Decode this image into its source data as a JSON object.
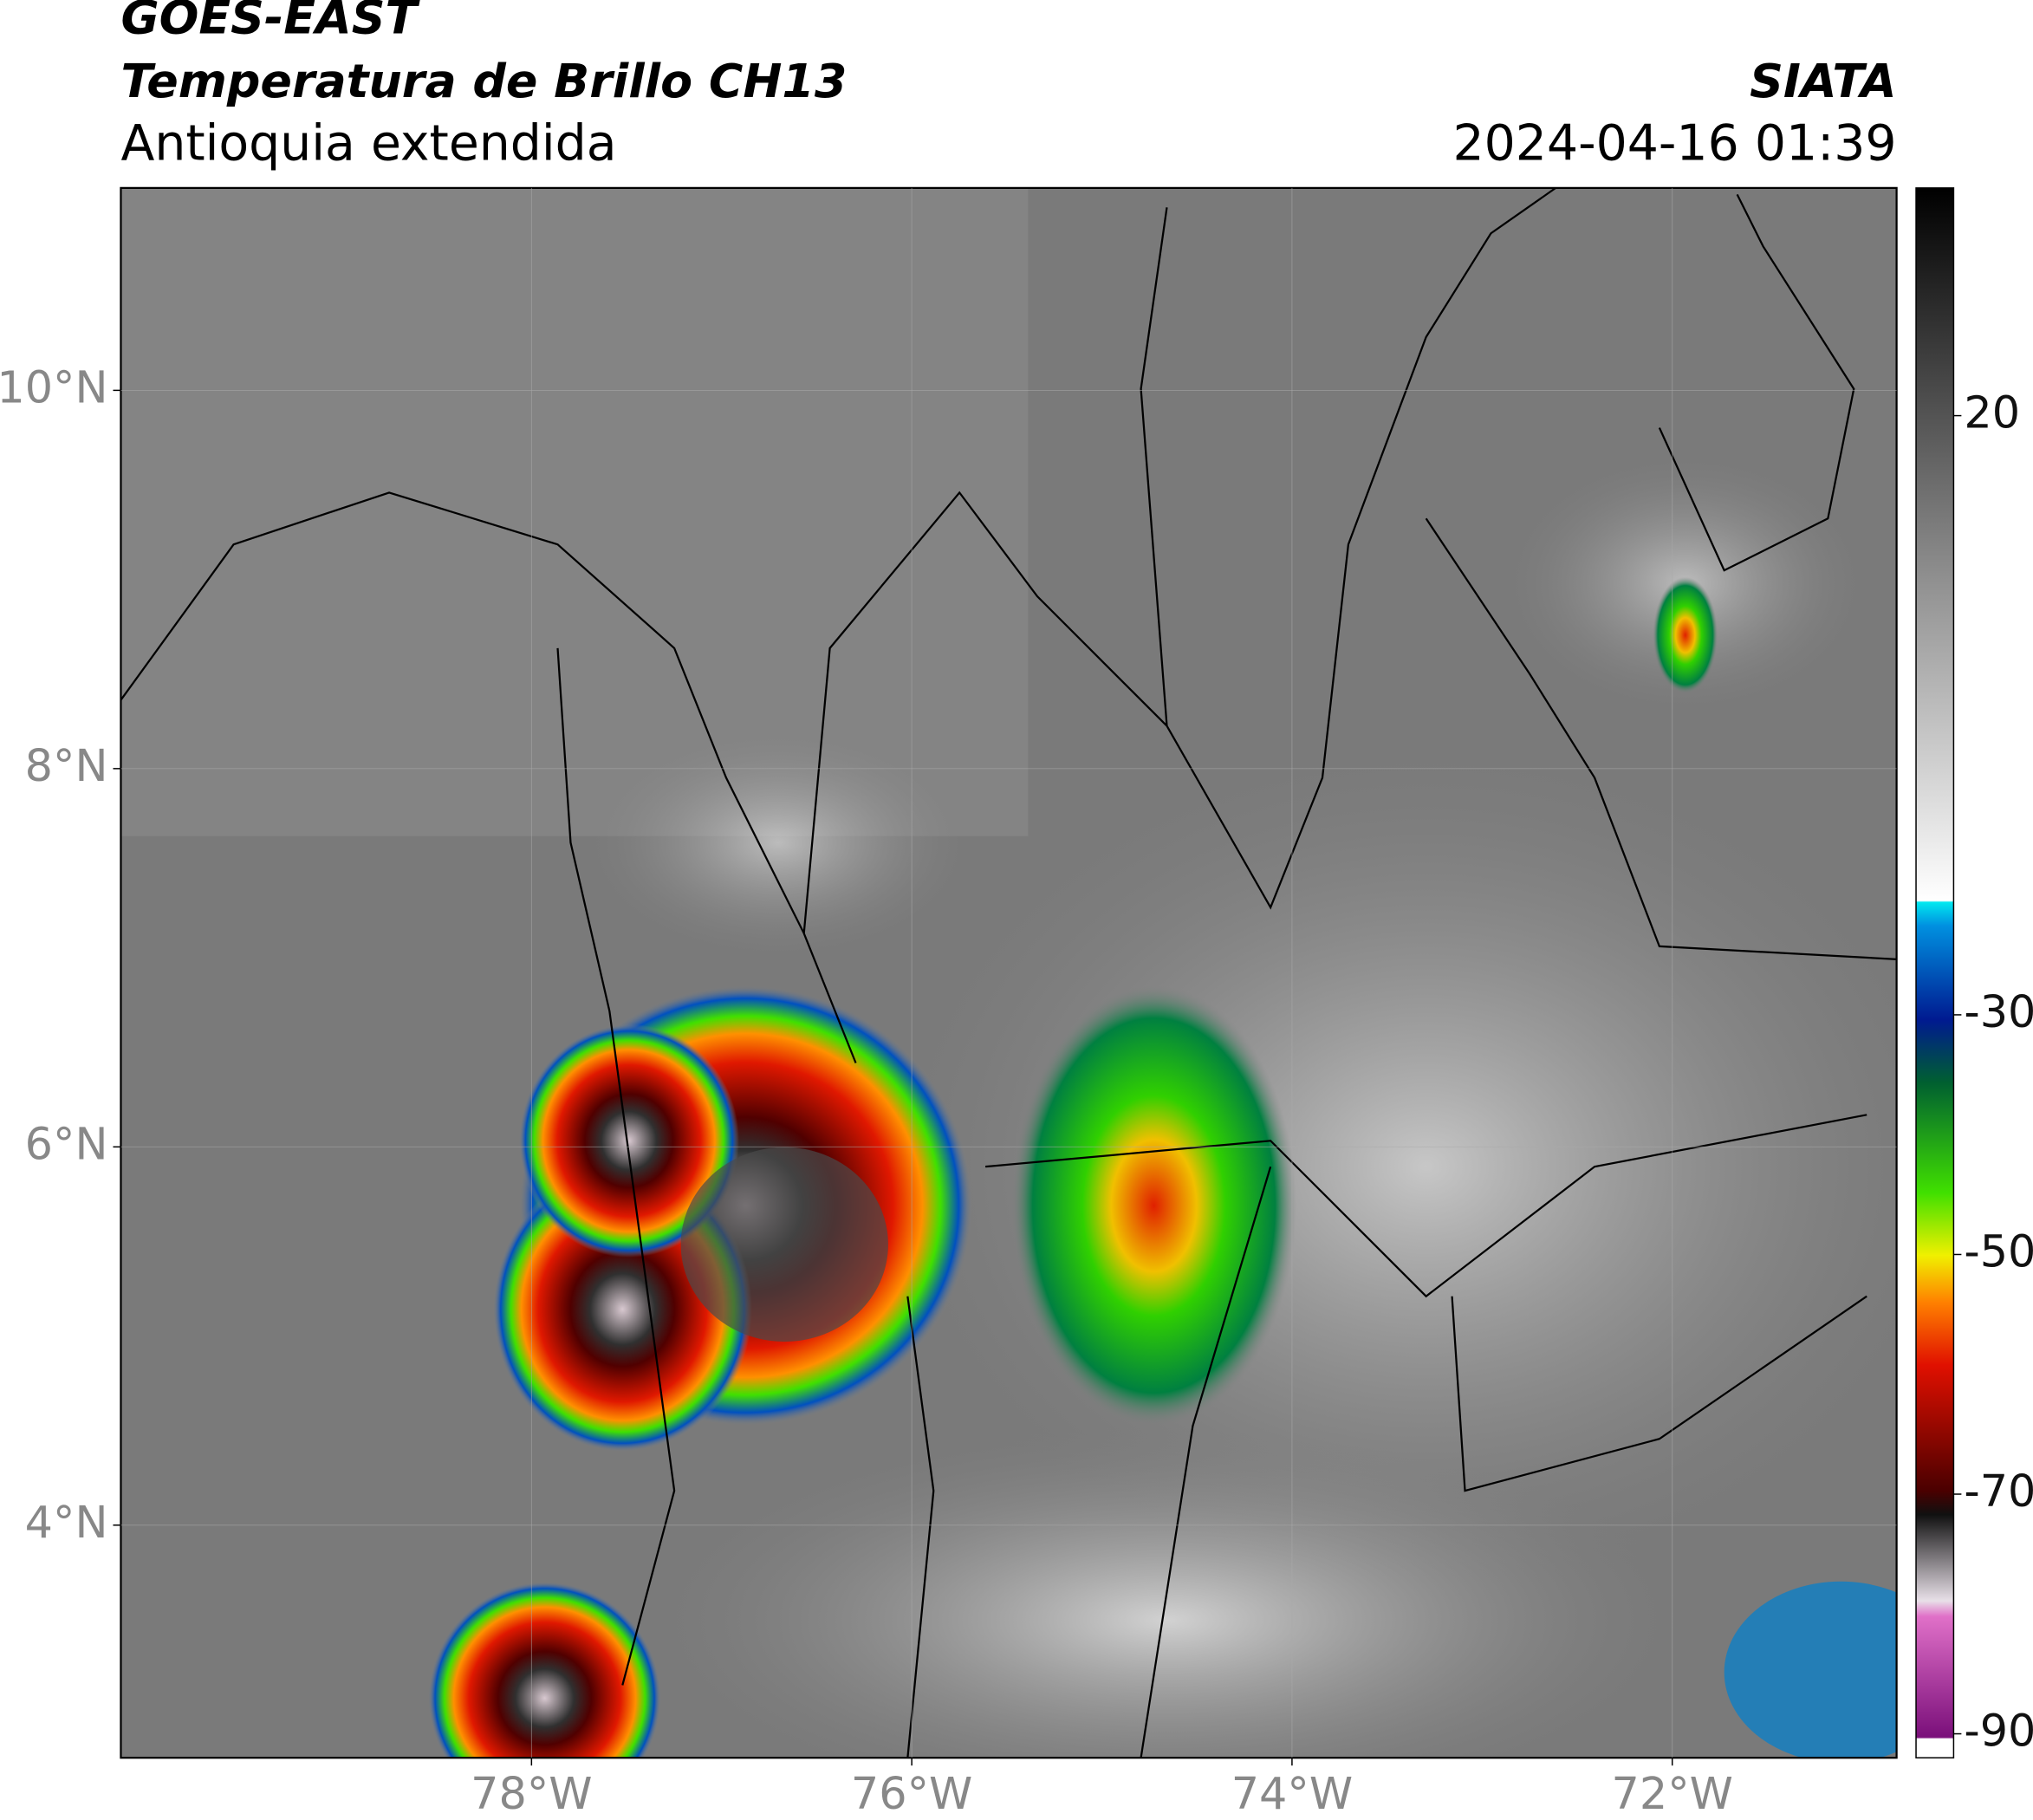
{
  "header": {
    "title_line1": "GOES-EAST",
    "title_line2": "Temperatura de Brillo CH13",
    "subtitle": "Antioquia extendida",
    "source": "SIATA",
    "datetime": "2024-04-16 01:39"
  },
  "map": {
    "lonlim": [
      -80.16,
      -70.82
    ],
    "latlim": [
      2.77,
      11.07
    ],
    "lat_ticks": [
      {
        "value": 10,
        "label": "10°N"
      },
      {
        "value": 8,
        "label": "8°N"
      },
      {
        "value": 6,
        "label": "6°N"
      },
      {
        "value": 4,
        "label": "4°N"
      }
    ],
    "lon_ticks": [
      {
        "value": -78,
        "label": "78°W"
      },
      {
        "value": -76,
        "label": "76°W"
      },
      {
        "value": -74,
        "label": "74°W"
      },
      {
        "value": -72,
        "label": "72°W"
      }
    ]
  },
  "colorbar": {
    "lim": [
      -92,
      39
    ],
    "ticks": [
      20,
      -30,
      -50,
      -70,
      -90
    ]
  }
}
